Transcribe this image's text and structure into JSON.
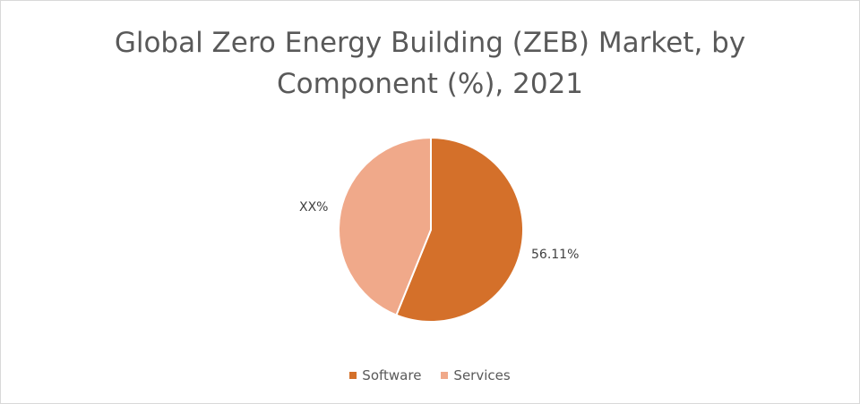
{
  "chart_data": {
    "type": "pie",
    "title_line1": "Global Zero Energy Building (ZEB) Market, by",
    "title_line2": "Component (%), 2021",
    "categories": [
      "Software",
      "Services"
    ],
    "values": [
      56.11,
      43.89
    ],
    "data_labels": [
      "56.11%",
      "XX%"
    ],
    "colors": [
      "#D4702A",
      "#F0A98A"
    ],
    "legend_position": "bottom",
    "start_angle_deg": 0,
    "direction": "clockwise"
  }
}
